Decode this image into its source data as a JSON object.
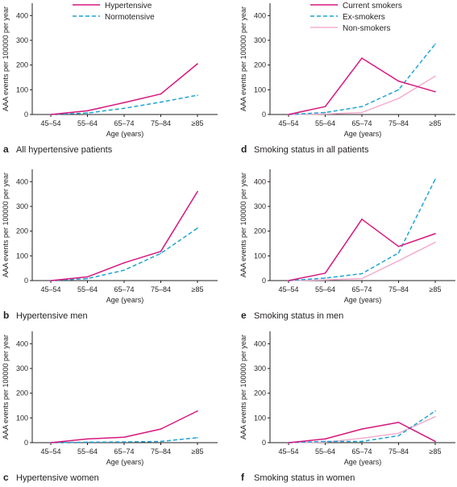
{
  "styles": {
    "hypertensive": {
      "color": "#d6177f",
      "dash": "",
      "width": 1.5
    },
    "normotensive": {
      "color": "#1fa4d4",
      "dash": "5,3",
      "width": 1.5
    },
    "current": {
      "color": "#d6177f",
      "dash": "",
      "width": 1.5
    },
    "ex": {
      "color": "#1fa4d4",
      "dash": "5,3",
      "width": 1.5
    },
    "non": {
      "color": "#f2afcf",
      "dash": "",
      "width": 1.5
    },
    "axis": "#231f20"
  },
  "chart_data": [
    {
      "id": "a",
      "type": "line",
      "letter": "a",
      "caption": "All hypertensive patients",
      "xlabel": "Age (years)",
      "ylabel": "AAA events per 100000 per year",
      "categories": [
        "45–54",
        "55–64",
        "65–74",
        "75–84",
        "≥85"
      ],
      "yticks": [
        "0",
        "100",
        "200",
        "300",
        "400"
      ],
      "ylim": [
        0,
        450
      ],
      "legend": "top-center",
      "series": [
        {
          "name": "Hypertensive",
          "style": "hypertensive",
          "values": [
            0,
            15,
            48,
            83,
            205
          ]
        },
        {
          "name": "Normotensive",
          "style": "normotensive",
          "values": [
            0,
            6,
            25,
            50,
            78
          ]
        }
      ]
    },
    {
      "id": "b",
      "type": "line",
      "letter": "b",
      "caption": "Hypertensive men",
      "xlabel": "Age (years)",
      "ylabel": "AAA events per 100000 per year",
      "categories": [
        "45–54",
        "55–64",
        "65–74",
        "75–84",
        "≥85"
      ],
      "yticks": [
        "0",
        "100",
        "200",
        "300",
        "400"
      ],
      "ylim": [
        0,
        450
      ],
      "series": [
        {
          "style": "hypertensive",
          "values": [
            0,
            15,
            72,
            118,
            360
          ]
        },
        {
          "style": "normotensive",
          "values": [
            0,
            8,
            42,
            110,
            212
          ]
        }
      ]
    },
    {
      "id": "c",
      "type": "line",
      "letter": "c",
      "caption": "Hypertensive women",
      "xlabel": "Age (years)",
      "ylabel": "AAA events per 100000 per year",
      "categories": [
        "45–54",
        "55–64",
        "65–74",
        "75–84",
        "≥85"
      ],
      "yticks": [
        "0",
        "100",
        "200",
        "300",
        "400"
      ],
      "ylim": [
        0,
        450
      ],
      "series": [
        {
          "style": "hypertensive",
          "values": [
            0,
            15,
            22,
            55,
            128
          ]
        },
        {
          "style": "normotensive",
          "values": [
            0,
            2,
            3,
            5,
            20
          ]
        }
      ]
    },
    {
      "id": "d",
      "type": "line",
      "letter": "d",
      "caption": "Smoking status in all patients",
      "xlabel": "Age (years)",
      "ylabel": "AAA events per 100000 per year",
      "categories": [
        "45–54",
        "55–64",
        "65–74",
        "75–84",
        "≥85"
      ],
      "yticks": [
        "0",
        "100",
        "200",
        "300",
        "400"
      ],
      "ylim": [
        0,
        450
      ],
      "legend": "top-center",
      "series": [
        {
          "name": "Current smokers",
          "style": "current",
          "values": [
            0,
            32,
            228,
            135,
            92
          ]
        },
        {
          "name": "Ex-smokers",
          "style": "ex",
          "values": [
            0,
            8,
            32,
            100,
            285
          ]
        },
        {
          "name": "Non-smokers",
          "style": "non",
          "values": [
            0,
            2,
            8,
            65,
            155
          ]
        }
      ]
    },
    {
      "id": "e",
      "type": "line",
      "letter": "e",
      "caption": "Smoking status in men",
      "xlabel": "Age (years)",
      "ylabel": "AAA events per 100000 per year",
      "categories": [
        "45–54",
        "55–64",
        "65–74",
        "75–84",
        "≥85"
      ],
      "yticks": [
        "0",
        "100",
        "200",
        "300",
        "400"
      ],
      "ylim": [
        0,
        450
      ],
      "series": [
        {
          "style": "current",
          "values": [
            0,
            30,
            248,
            138,
            190
          ]
        },
        {
          "style": "ex",
          "values": [
            0,
            10,
            28,
            112,
            410
          ]
        },
        {
          "style": "non",
          "values": [
            0,
            3,
            8,
            80,
            155
          ]
        }
      ]
    },
    {
      "id": "f",
      "type": "line",
      "letter": "f",
      "caption": "Smoking status in women",
      "xlabel": "Age (years)",
      "ylabel": "AAA events per 100000 per year",
      "categories": [
        "45–54",
        "55–64",
        "65–74",
        "75–84",
        "≥85"
      ],
      "yticks": [
        "0",
        "100",
        "200",
        "300",
        "400"
      ],
      "ylim": [
        0,
        450
      ],
      "series": [
        {
          "style": "current",
          "values": [
            0,
            15,
            55,
            82,
            5
          ]
        },
        {
          "style": "ex",
          "values": [
            0,
            5,
            5,
            28,
            128
          ]
        },
        {
          "style": "non",
          "values": [
            0,
            2,
            18,
            38,
            105
          ]
        }
      ]
    }
  ]
}
